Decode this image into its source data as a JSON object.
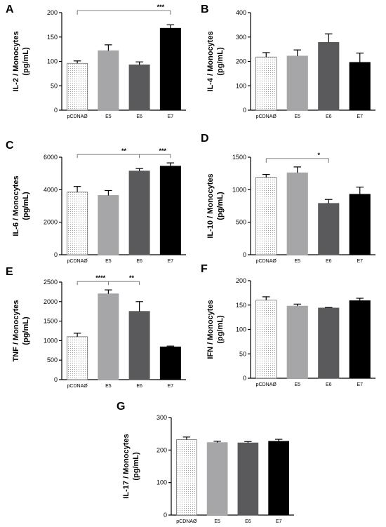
{
  "chart_data": [
    {
      "panel": "A",
      "type": "bar",
      "ylabel": [
        "IL-2 / Monocytes",
        "(pg/mL)"
      ],
      "categories": [
        "pCDNAØ",
        "E5",
        "E6",
        "E7"
      ],
      "values": [
        96,
        122,
        93,
        168
      ],
      "errors": [
        5,
        12,
        6,
        7
      ],
      "ylim": [
        0,
        200
      ],
      "yticks": [
        0,
        50,
        100,
        150,
        200
      ],
      "colors": [
        "#ffffff",
        "#a6a6a8",
        "#5a5a5c",
        "#000000"
      ],
      "dotted_first": true,
      "significance": [
        {
          "from": 0,
          "to": 3,
          "label": "***"
        }
      ]
    },
    {
      "panel": "B",
      "type": "bar",
      "ylabel": [
        "IL-4 / Monocytes",
        "(pg/mL)"
      ],
      "categories": [
        "pCDNAØ",
        "E5",
        "E6",
        "E7"
      ],
      "values": [
        218,
        222,
        278,
        196
      ],
      "errors": [
        18,
        25,
        35,
        38
      ],
      "ylim": [
        0,
        400
      ],
      "yticks": [
        0,
        100,
        200,
        300,
        400
      ],
      "colors": [
        "#ffffff",
        "#a6a6a8",
        "#5a5a5c",
        "#000000"
      ],
      "dotted_first": true,
      "significance": []
    },
    {
      "panel": "C",
      "type": "bar",
      "ylabel": [
        "IL-6 / Monocytes",
        "(pg/mL)"
      ],
      "categories": [
        "pCDNAØ",
        "E5",
        "E6",
        "E7"
      ],
      "values": [
        3850,
        3650,
        5150,
        5450
      ],
      "errors": [
        350,
        300,
        150,
        200
      ],
      "ylim": [
        0,
        6000
      ],
      "yticks": [
        0,
        2000,
        4000,
        6000
      ],
      "colors": [
        "#ffffff",
        "#a6a6a8",
        "#5a5a5c",
        "#000000"
      ],
      "dotted_first": true,
      "significance": [
        {
          "from": 0,
          "to": 2,
          "label": "**",
          "shared_line": 0
        },
        {
          "from": 2,
          "to": 3,
          "label": "***",
          "shared_line": 0
        }
      ]
    },
    {
      "panel": "D",
      "type": "bar",
      "ylabel": [
        "IL-10 / Monocytes",
        "(pg/mL)"
      ],
      "categories": [
        "pCDNAØ",
        "E5",
        "E6",
        "E7"
      ],
      "values": [
        1190,
        1260,
        790,
        930
      ],
      "errors": [
        45,
        90,
        60,
        110
      ],
      "ylim": [
        0,
        1500
      ],
      "yticks": [
        0,
        500,
        1000,
        1500
      ],
      "colors": [
        "#ffffff",
        "#a6a6a8",
        "#5a5a5c",
        "#000000"
      ],
      "dotted_first": true,
      "significance": [
        {
          "from": 0,
          "to": 2,
          "label": "*"
        }
      ]
    },
    {
      "panel": "E",
      "type": "bar",
      "ylabel": [
        "TNF / Monocytes",
        "(pg/mL)"
      ],
      "categories": [
        "pCDNAØ",
        "E5",
        "E6",
        "E7"
      ],
      "values": [
        1100,
        2200,
        1750,
        840
      ],
      "errors": [
        90,
        100,
        250,
        20
      ],
      "ylim": [
        0,
        2500
      ],
      "yticks": [
        0,
        500,
        1000,
        1500,
        2000,
        2500
      ],
      "colors": [
        "#ffffff",
        "#a6a6a8",
        "#5a5a5c",
        "#000000"
      ],
      "dotted_first": true,
      "significance": [
        {
          "from": 0,
          "to": 1,
          "label": "****",
          "shared_line": 0
        },
        {
          "from": 1,
          "to": 2,
          "label": "**",
          "shared_line": 0
        }
      ]
    },
    {
      "panel": "F",
      "type": "bar",
      "ylabel": [
        "IFN / Monocytes",
        "(pg/mL)"
      ],
      "categories": [
        "pCDNAØ",
        "E5",
        "E6",
        "E7"
      ],
      "values": [
        160,
        148,
        144,
        159
      ],
      "errors": [
        7,
        4,
        1,
        5
      ],
      "ylim": [
        0,
        200
      ],
      "yticks": [
        0,
        50,
        100,
        150,
        200
      ],
      "colors": [
        "#ffffff",
        "#a6a6a8",
        "#5a5a5c",
        "#000000"
      ],
      "dotted_first": true,
      "significance": []
    },
    {
      "panel": "G",
      "type": "bar",
      "ylabel": [
        "IL-17 / Monocytes",
        "(pg/mL)"
      ],
      "categories": [
        "pCDNAØ",
        "E5",
        "E6",
        "E7"
      ],
      "values": [
        232,
        223,
        222,
        227
      ],
      "errors": [
        8,
        4,
        4,
        6
      ],
      "ylim": [
        0,
        300
      ],
      "yticks": [
        0,
        100,
        200,
        300
      ],
      "colors": [
        "#ffffff",
        "#a6a6a8",
        "#5a5a5c",
        "#000000"
      ],
      "dotted_first": true,
      "significance": []
    }
  ]
}
